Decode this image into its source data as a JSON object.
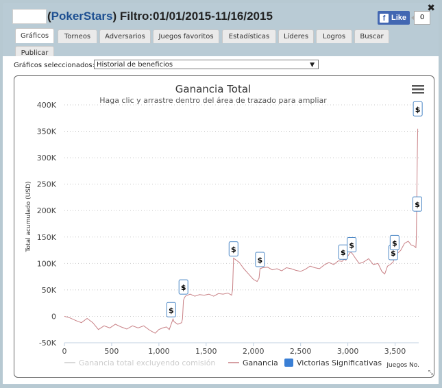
{
  "header": {
    "brand": "PokerStars",
    "filter_text": "Filtro:01/01/2015-11/16/2015",
    "paren_open": "(",
    "paren_close": ")",
    "close_glyph": "✖",
    "facebook": {
      "label": "Like",
      "count": "0",
      "icon": "facebook-icon"
    }
  },
  "tabs": [
    {
      "label": "Gráficos",
      "active": true
    },
    {
      "label": "Torneos"
    },
    {
      "label": "Adversarios"
    },
    {
      "label": "Juegos favoritos"
    },
    {
      "label": "Estadísticas"
    },
    {
      "label": "Líderes"
    },
    {
      "label": "Logros"
    },
    {
      "label": "Buscar"
    },
    {
      "label": "Publicar"
    }
  ],
  "selector": {
    "label": "Gráficos seleccionados:",
    "value": "Historial de beneficios",
    "arrow": "▼"
  },
  "menu_icon": "hamburger-menu-icon",
  "resize_glyph": "⤡",
  "chart_data": {
    "type": "line",
    "title": "Ganancia Total",
    "subtitle": "Haga clic y arrastre dentro del área de trazado para ampliar",
    "ylabel": "Total acumulado (USD)",
    "xlabel": "Juegos No.",
    "ylim": [
      -50000,
      400000
    ],
    "xlim": [
      0,
      3750
    ],
    "yticks": [
      -50000,
      0,
      50000,
      100000,
      150000,
      200000,
      250000,
      300000,
      350000,
      400000
    ],
    "ytick_labels": [
      "-50K",
      "0",
      "50K",
      "100K",
      "150K",
      "200K",
      "250K",
      "300K",
      "350K",
      "400K"
    ],
    "xticks": [
      0,
      500,
      1000,
      1500,
      2000,
      2500,
      3000,
      3500
    ],
    "xtick_labels": [
      "0",
      "500",
      "1,000",
      "1,500",
      "2,000",
      "2,500",
      "3,000",
      "3,500"
    ],
    "grid": "horizontal dotted",
    "legend_position": "bottom",
    "series": [
      {
        "name": "Ganancia total excluyendo comisión",
        "color": "#cccccc",
        "visible": false
      },
      {
        "name": "Ganancia",
        "color": "#c87f84",
        "x": [
          0,
          60,
          120,
          180,
          240,
          300,
          360,
          420,
          480,
          540,
          600,
          660,
          720,
          780,
          840,
          900,
          960,
          1000,
          1040,
          1080,
          1110,
          1150,
          1160,
          1200,
          1240,
          1250,
          1260,
          1270,
          1280,
          1330,
          1380,
          1430,
          1480,
          1530,
          1580,
          1630,
          1680,
          1730,
          1770,
          1780,
          1790,
          1850,
          1900,
          1950,
          2000,
          2040,
          2060,
          2070,
          2100,
          2150,
          2200,
          2250,
          2300,
          2350,
          2400,
          2450,
          2500,
          2550,
          2600,
          2650,
          2700,
          2750,
          2800,
          2850,
          2900,
          2940,
          2960,
          2980,
          3000,
          3030,
          3050,
          3080,
          3120,
          3170,
          3220,
          3270,
          3320,
          3360,
          3390,
          3420,
          3450,
          3480,
          3500,
          3530,
          3560,
          3600,
          3640,
          3670,
          3700,
          3720,
          3725,
          3730,
          3735,
          3740
        ],
        "y": [
          0,
          -3000,
          -8000,
          -12000,
          -4000,
          -12000,
          -25000,
          -18000,
          -22000,
          -15000,
          -20000,
          -24000,
          -18000,
          -22000,
          -18000,
          -26000,
          -32000,
          -25000,
          -22000,
          -20000,
          -25000,
          -5000,
          -10000,
          -15000,
          -12000,
          -5000,
          30000,
          35000,
          38000,
          42000,
          38000,
          41000,
          40000,
          42000,
          38000,
          43000,
          42000,
          44000,
          40000,
          50000,
          110000,
          102000,
          90000,
          80000,
          70000,
          66000,
          72000,
          90000,
          92000,
          93000,
          88000,
          90000,
          86000,
          92000,
          90000,
          87000,
          85000,
          89000,
          95000,
          92000,
          90000,
          97000,
          102000,
          98000,
          105000,
          104000,
          108000,
          106000,
          114000,
          122000,
          118000,
          110000,
          100000,
          103000,
          109000,
          98000,
          100000,
          85000,
          80000,
          95000,
          98000,
          103000,
          115000,
          120000,
          125000,
          138000,
          142000,
          135000,
          133000,
          130000,
          150000,
          220000,
          300000,
          355000
        ]
      },
      {
        "name": "Victorias Significativas",
        "color": "#3a7fd5"
      }
    ],
    "significant_wins": [
      {
        "x": 1130,
        "y": -5000,
        "label": "$"
      },
      {
        "x": 1260,
        "y": 38000,
        "label": "$"
      },
      {
        "x": 1790,
        "y": 110000,
        "label": "$"
      },
      {
        "x": 2070,
        "y": 90000,
        "label": "$"
      },
      {
        "x": 2950,
        "y": 104000,
        "label": "$"
      },
      {
        "x": 3040,
        "y": 118000,
        "label": "$"
      },
      {
        "x": 3480,
        "y": 103000,
        "label": "$"
      },
      {
        "x": 3495,
        "y": 122000,
        "label": "$"
      },
      {
        "x": 3735,
        "y": 195000,
        "label": "$"
      },
      {
        "x": 3740,
        "y": 375000,
        "label": "$"
      }
    ]
  }
}
